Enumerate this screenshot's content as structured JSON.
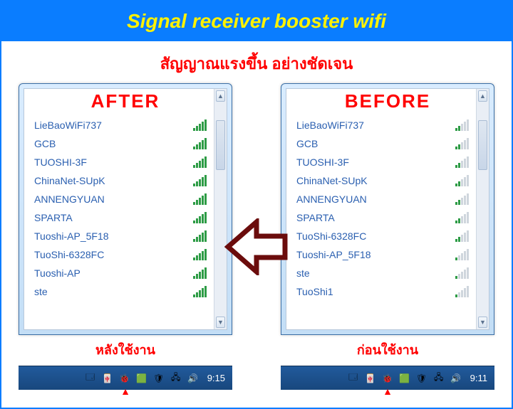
{
  "banner": {
    "title": "Signal receiver booster wifi"
  },
  "subtitle": "สัญญาณแรงขึ้น อย่างชัดเจน",
  "colors": {
    "banner_bg": "#0a7dff",
    "banner_text": "#fff200",
    "accent_red": "#ff0000",
    "arrow_stroke": "#6b0c0c",
    "signal_fill": "#2e9c46",
    "signal_empty": "#cfd6dd",
    "network_text": "#2a5fb0",
    "taskbar_top": "#215a9c",
    "taskbar_bottom": "#18477d"
  },
  "after": {
    "heading": "AFTER",
    "caption": "หลังใช้งาน",
    "clock": "9:15",
    "networks": [
      {
        "name": "LieBaoWiFi737",
        "bars": 5
      },
      {
        "name": "GCB",
        "bars": 5
      },
      {
        "name": "TUOSHI-3F",
        "bars": 5
      },
      {
        "name": "ChinaNet-SUpK",
        "bars": 5
      },
      {
        "name": "ANNENGYUAN",
        "bars": 5
      },
      {
        "name": "SPARTA",
        "bars": 5
      },
      {
        "name": "Tuoshi-AP_5F18",
        "bars": 5
      },
      {
        "name": "TuoShi-6328FC",
        "bars": 5
      },
      {
        "name": "Tuoshi-AP",
        "bars": 5
      },
      {
        "name": "ste",
        "bars": 5
      }
    ]
  },
  "before": {
    "heading": "BEFORE",
    "caption": "ก่อนใช้งาน",
    "clock": "9:11",
    "networks": [
      {
        "name": "LieBaoWiFi737",
        "bars": 2
      },
      {
        "name": "GCB",
        "bars": 2
      },
      {
        "name": "TUOSHI-3F",
        "bars": 2
      },
      {
        "name": "ChinaNet-SUpK",
        "bars": 2
      },
      {
        "name": "ANNENGYUAN",
        "bars": 2
      },
      {
        "name": "SPARTA",
        "bars": 2
      },
      {
        "name": "TuoShi-6328FC",
        "bars": 2
      },
      {
        "name": "Tuoshi-AP_5F18",
        "bars": 1
      },
      {
        "name": "ste",
        "bars": 1
      },
      {
        "name": "TuoShi1",
        "bars": 1
      }
    ]
  },
  "tray_icons": [
    "🗔",
    "🀄",
    "🐞",
    "🟩",
    "🛡",
    "🖧",
    "🔊"
  ]
}
